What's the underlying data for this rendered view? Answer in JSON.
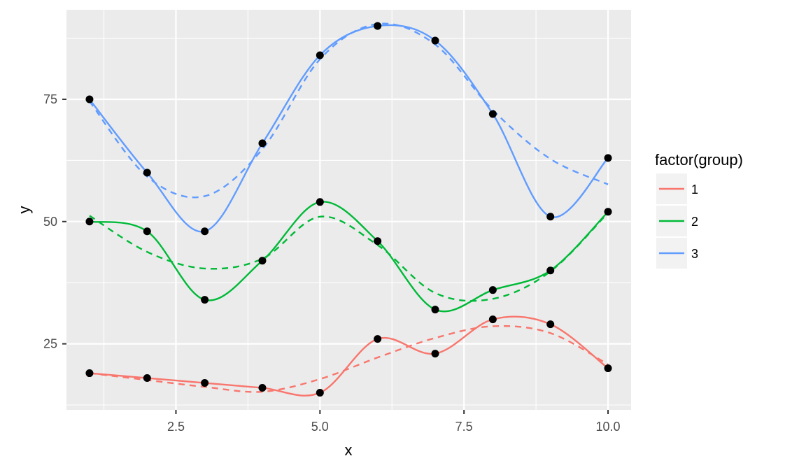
{
  "chart_data": {
    "type": "line",
    "title": "",
    "xlabel": "x",
    "ylabel": "y",
    "xlim": [
      0.6,
      10.4
    ],
    "ylim": [
      11.5,
      93.3
    ],
    "x_ticks": [
      2.5,
      5.0,
      7.5,
      10.0
    ],
    "x_tick_labels": [
      "2.5",
      "5.0",
      "7.5",
      "10.0"
    ],
    "y_ticks": [
      25,
      50,
      75
    ],
    "y_tick_labels": [
      "25",
      "50",
      "75"
    ],
    "grid": true,
    "legend": {
      "title": "factor(group)",
      "position": "right"
    },
    "x": [
      1,
      2,
      3,
      4,
      5,
      6,
      7,
      8,
      9,
      10
    ],
    "series": [
      {
        "name": "1",
        "color": "#f8766d",
        "values": [
          19,
          18,
          17,
          16,
          15,
          26,
          23,
          30,
          29,
          20
        ],
        "trend": [
          19,
          17.6,
          16.2,
          15.2,
          17.8,
          22.2,
          26.2,
          28.6,
          27.2,
          20.8
        ]
      },
      {
        "name": "2",
        "color": "#00ba38",
        "values": [
          50,
          48,
          34,
          42,
          54,
          46,
          32,
          36,
          40,
          52
        ],
        "trend": [
          51.2,
          43.8,
          40.4,
          42.4,
          51,
          45.2,
          35.4,
          34.2,
          39.8,
          51.8
        ]
      },
      {
        "name": "3",
        "color": "#619cff",
        "values": [
          75,
          60,
          48,
          66,
          84,
          90,
          87,
          72,
          51,
          63
        ],
        "trend": [
          74.6,
          59.2,
          55.2,
          64.8,
          83.2,
          90.4,
          86.2,
          72.8,
          62.8,
          57.6
        ]
      }
    ],
    "points_color": "#000000",
    "panel_color": "#ebebeb"
  }
}
